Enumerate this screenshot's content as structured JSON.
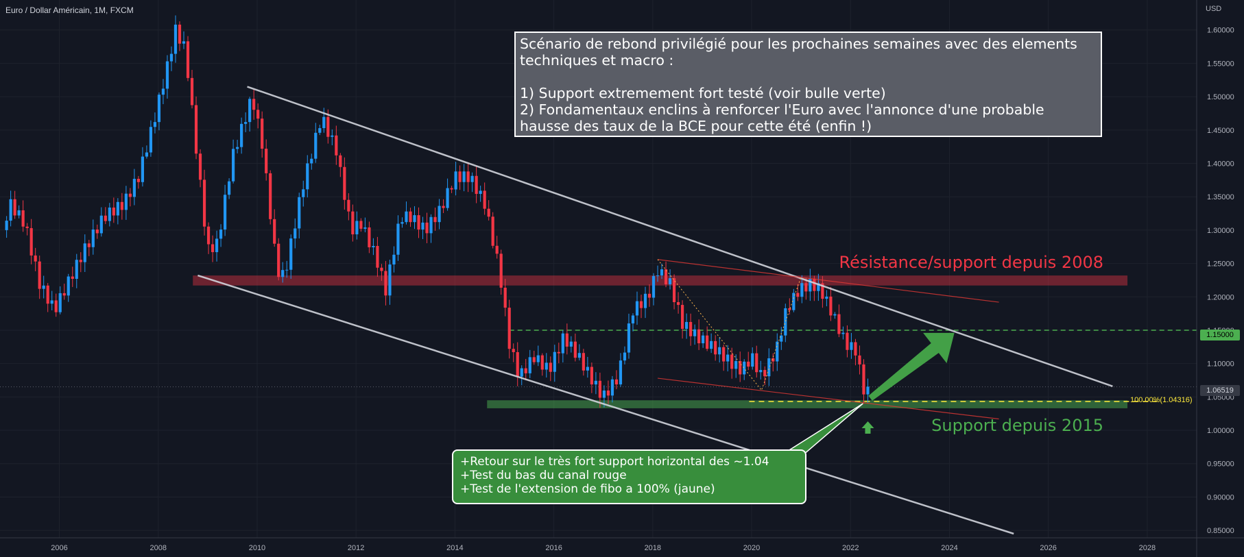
{
  "header": {
    "symbol_title": "Euro / Dollar Américain, 1M, FXCM",
    "currency": "USD"
  },
  "annotations": {
    "gray_note": {
      "lines": [
        "Scénario de rebond privilégié pour les prochaines semaines avec des elements",
        "techniques et macro :",
        "",
        "1) Support extremement fort testé (voir bulle verte)",
        "2) Fondamentaux enclins à renforcer l'Euro avec l'annonce d'une probable",
        "hausse des taux de la BCE pour cette été (enfin !)"
      ]
    },
    "green_note": {
      "lines": [
        "+Retour sur le très fort support horizontal des ~1.04",
        "+Test du bas du canal rouge",
        "+Test de l'extension de fibo a 100% (jaune)"
      ]
    },
    "resistance_label": "Résistance/support depuis 2008",
    "support_label": "Support depuis 2015",
    "fib_label": "100.00%(1.04316)",
    "price_tags": {
      "level": "1.15000",
      "last": "1.06519"
    }
  },
  "colors": {
    "up": "#26a69a",
    "up_candle": "#2196f3",
    "down": "#f23645",
    "background": "#131722",
    "resistance_zone": "#f2364566",
    "support_zone": "#4caf5080",
    "dashed_green": "#4caf50",
    "fib": "#ffeb3b",
    "arrow": "#43a047"
  },
  "chart_data": {
    "type": "candlestick",
    "title": "Euro / Dollar Américain, 1M, FXCM",
    "x_ticks": [
      "2006",
      "2008",
      "2010",
      "2012",
      "2014",
      "2016",
      "2018",
      "2020",
      "2022",
      "2024",
      "2026",
      "2028"
    ],
    "y_ticks": [
      "1.60000",
      "1.55000",
      "1.50000",
      "1.45000",
      "1.40000",
      "1.35000",
      "1.30000",
      "1.25000",
      "1.20000",
      "1.15000",
      "1.10000",
      "1.05000",
      "1.00000",
      "0.95000",
      "0.90000",
      "0.85000"
    ],
    "xlim": [
      2004.8,
      2029.0
    ],
    "ylim": [
      0.845,
      1.61
    ],
    "close_path": [
      [
        2004.85,
        1.3
      ],
      [
        2005.0,
        1.34
      ],
      [
        2005.3,
        1.31
      ],
      [
        2005.6,
        1.22
      ],
      [
        2005.9,
        1.18
      ],
      [
        2006.1,
        1.21
      ],
      [
        2006.5,
        1.27
      ],
      [
        2006.9,
        1.32
      ],
      [
        2007.3,
        1.34
      ],
      [
        2007.6,
        1.38
      ],
      [
        2007.9,
        1.46
      ],
      [
        2008.2,
        1.55
      ],
      [
        2008.35,
        1.6
      ],
      [
        2008.55,
        1.57
      ],
      [
        2008.8,
        1.4
      ],
      [
        2009.0,
        1.27
      ],
      [
        2009.2,
        1.28
      ],
      [
        2009.5,
        1.41
      ],
      [
        2009.9,
        1.5
      ],
      [
        2010.1,
        1.43
      ],
      [
        2010.4,
        1.24
      ],
      [
        2010.55,
        1.23
      ],
      [
        2010.9,
        1.36
      ],
      [
        2011.3,
        1.47
      ],
      [
        2011.6,
        1.42
      ],
      [
        2011.9,
        1.3
      ],
      [
        2012.1,
        1.31
      ],
      [
        2012.4,
        1.26
      ],
      [
        2012.6,
        1.21
      ],
      [
        2012.9,
        1.32
      ],
      [
        2013.1,
        1.32
      ],
      [
        2013.4,
        1.3
      ],
      [
        2013.7,
        1.33
      ],
      [
        2014.0,
        1.38
      ],
      [
        2014.3,
        1.38
      ],
      [
        2014.6,
        1.34
      ],
      [
        2014.9,
        1.24
      ],
      [
        2015.1,
        1.13
      ],
      [
        2015.3,
        1.08
      ],
      [
        2015.6,
        1.11
      ],
      [
        2015.9,
        1.09
      ],
      [
        2016.2,
        1.14
      ],
      [
        2016.5,
        1.11
      ],
      [
        2016.9,
        1.06
      ],
      [
        2017.0,
        1.05
      ],
      [
        2017.3,
        1.08
      ],
      [
        2017.6,
        1.18
      ],
      [
        2017.9,
        1.2
      ],
      [
        2018.1,
        1.24
      ],
      [
        2018.35,
        1.22
      ],
      [
        2018.6,
        1.16
      ],
      [
        2018.9,
        1.14
      ],
      [
        2019.3,
        1.12
      ],
      [
        2019.6,
        1.1
      ],
      [
        2019.8,
        1.09
      ],
      [
        2020.0,
        1.11
      ],
      [
        2020.2,
        1.08
      ],
      [
        2020.5,
        1.12
      ],
      [
        2020.7,
        1.18
      ],
      [
        2020.95,
        1.21
      ],
      [
        2021.2,
        1.22
      ],
      [
        2021.4,
        1.21
      ],
      [
        2021.6,
        1.18
      ],
      [
        2021.9,
        1.13
      ],
      [
        2022.1,
        1.12
      ],
      [
        2022.3,
        1.05
      ],
      [
        2022.4,
        1.065
      ]
    ],
    "last_price": 1.06519,
    "resistance_zone": [
      1.217,
      1.232
    ],
    "support_zone": [
      1.033,
      1.045
    ],
    "dashed_level": 1.15,
    "fib_level": 1.04316,
    "channel_gray": [
      {
        "start": [
          2009.8,
          1.515
        ],
        "end": [
          2027.3,
          1.066
        ]
      },
      {
        "start": [
          2008.8,
          1.232
        ],
        "end": [
          2025.3,
          0.845
        ]
      }
    ],
    "channel_red": [
      {
        "start": [
          2018.1,
          1.256
        ],
        "end": [
          2025.0,
          1.192
        ]
      },
      {
        "start": [
          2018.1,
          1.078
        ],
        "end": [
          2025.0,
          1.017
        ]
      }
    ]
  }
}
